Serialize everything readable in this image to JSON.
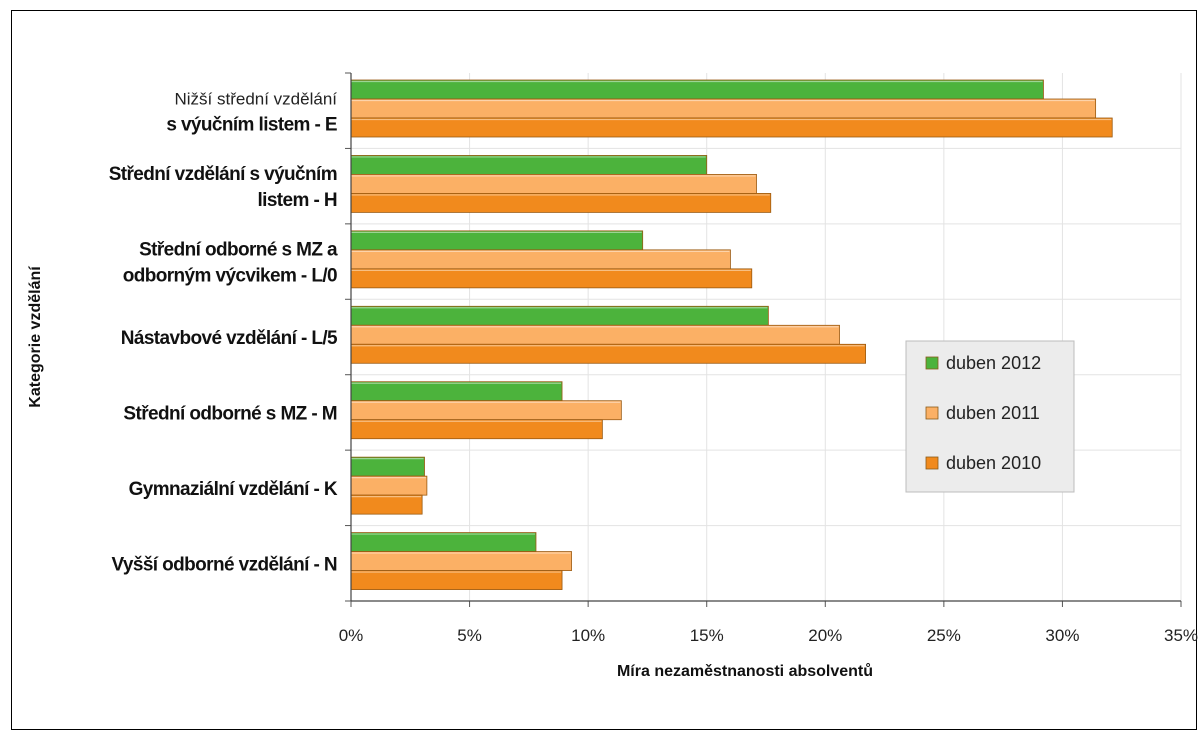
{
  "chart_data": {
    "type": "bar",
    "orientation": "horizontal",
    "title": "",
    "xlabel": "Míra nezaměstnanosti absolventů",
    "ylabel": "Kategorie vzdělání",
    "xlim": [
      0,
      35
    ],
    "x_ticks": [
      "0%",
      "5%",
      "10%",
      "15%",
      "20%",
      "25%",
      "30%",
      "35%"
    ],
    "grid": true,
    "legend_position": "right-middle",
    "categories": [
      {
        "lines": [
          "Nižší střední vzdělání",
          "s výučním listem - E"
        ]
      },
      {
        "lines": [
          "Střední vzdělání s výučním",
          "listem - H"
        ]
      },
      {
        "lines": [
          "Střední odborné s MZ a",
          "odborným výcvikem - L/0"
        ]
      },
      {
        "lines": [
          "Nástavbové vzdělání - L/5"
        ]
      },
      {
        "lines": [
          "Střední odborné s MZ - M"
        ]
      },
      {
        "lines": [
          "Gymnaziální vzdělání - K"
        ]
      },
      {
        "lines": [
          "Vyšší odborné vzdělání - N"
        ]
      }
    ],
    "series": [
      {
        "name": "duben 2012",
        "color": "#4cb33c",
        "values": [
          29.2,
          15.0,
          12.3,
          17.6,
          8.9,
          3.1,
          7.8
        ]
      },
      {
        "name": "duben 2011",
        "color": "#fbb065",
        "values": [
          31.4,
          17.1,
          16.0,
          20.6,
          11.4,
          3.2,
          9.3
        ]
      },
      {
        "name": "duben 2010",
        "color": "#f18a1d",
        "values": [
          32.1,
          17.7,
          16.9,
          21.7,
          10.6,
          3.0,
          8.9
        ]
      }
    ]
  }
}
